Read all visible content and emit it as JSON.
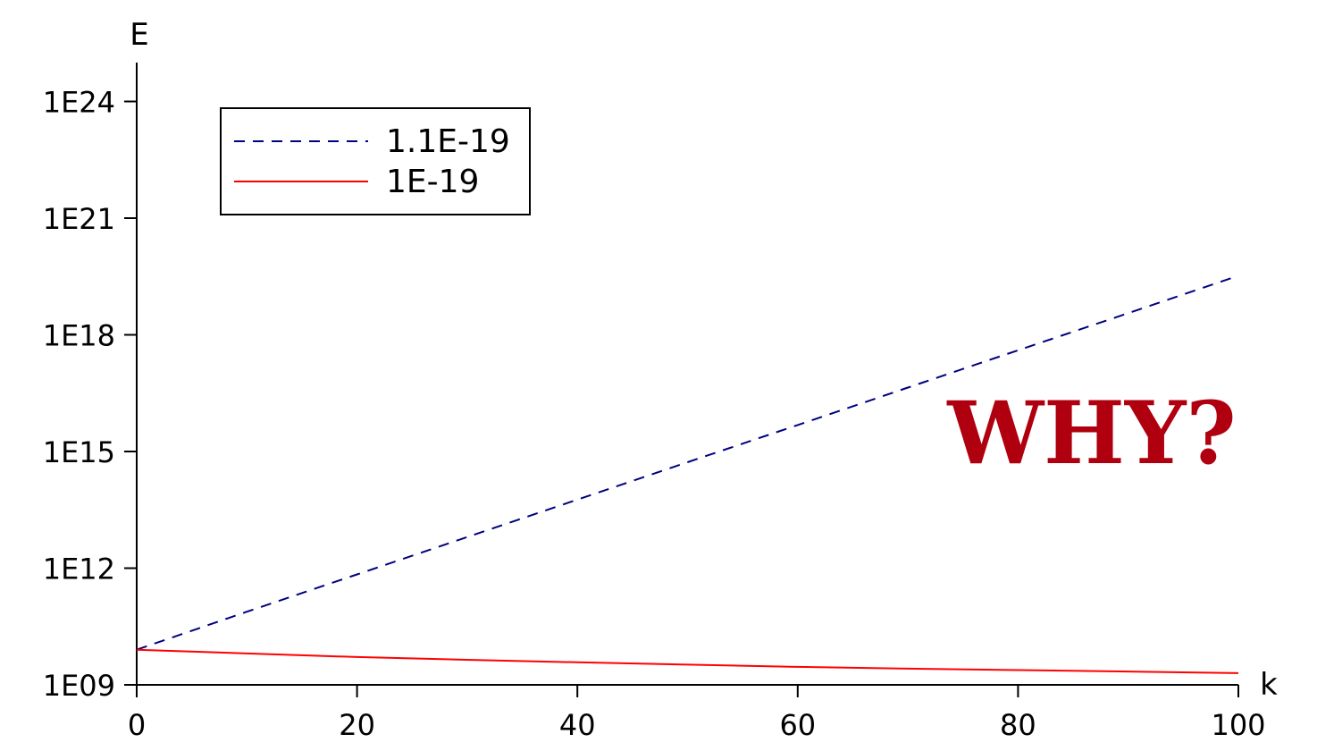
{
  "chart_data": {
    "type": "line",
    "xlabel": "k",
    "ylabel": "E",
    "xlim": [
      0,
      100
    ],
    "ylim_log10": [
      9,
      25
    ],
    "y_scale": "log",
    "grid": false,
    "legend_placement": "top-left",
    "x_ticks": [
      0,
      20,
      40,
      60,
      80,
      100
    ],
    "x_tick_labels": [
      "0",
      "20",
      "40",
      "60",
      "80",
      "100"
    ],
    "y_ticks_log10": [
      9,
      12,
      15,
      18,
      21,
      24
    ],
    "y_tick_labels": [
      "1E09",
      "1E12",
      "1E15",
      "1E18",
      "1E21",
      "1E24"
    ],
    "series": [
      {
        "name": "1.1E-19",
        "color": "#000080",
        "style": "dashed",
        "x": [
          0,
          10,
          20,
          30,
          40,
          50,
          60,
          70,
          80,
          90,
          100
        ],
        "y": [
          8000000000.0,
          76000000000.0,
          690000000000.0,
          6300000000000.0,
          58000000000000.0,
          530000000000000.0,
          4800000000000000.0,
          4.4e+16,
          4e+17,
          3.6e+18,
          3.3e+19
        ]
      },
      {
        "name": "1E-19",
        "color": "#ff0000",
        "style": "solid",
        "x": [
          0,
          10,
          20,
          30,
          40,
          50,
          60,
          70,
          80,
          90,
          100
        ],
        "y": [
          8000000000.0,
          6400000000.0,
          5200000000.0,
          4400000000.0,
          3800000000.0,
          3300000000.0,
          2900000000.0,
          2600000000.0,
          2400000000.0,
          2200000000.0,
          2000000000.0
        ]
      }
    ],
    "annotation": {
      "text": "WHY?",
      "color": "#b00010"
    }
  }
}
